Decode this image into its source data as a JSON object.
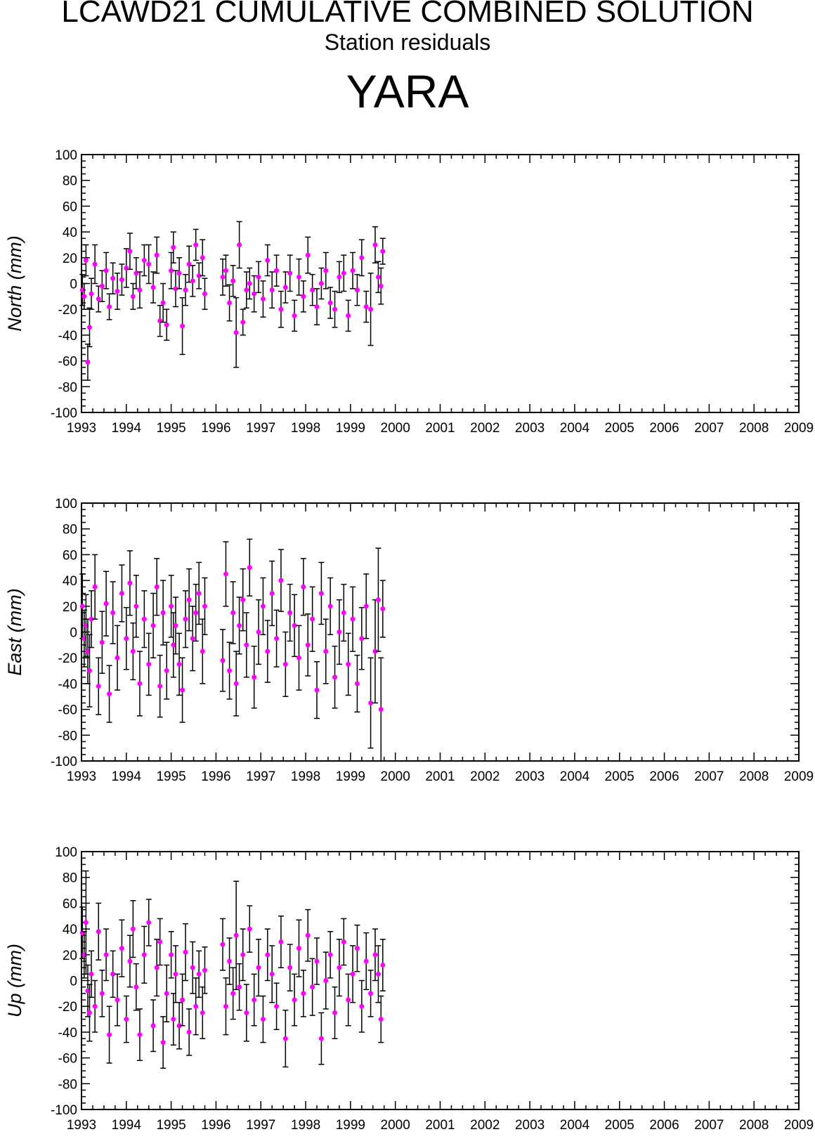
{
  "header": {
    "title": "LCAWD21 CUMULATIVE COMBINED SOLUTION",
    "subtitle": "Station residuals",
    "station": "YARA"
  },
  "colors": {
    "marker": "#ff00ff",
    "errorbar": "#000000",
    "axis": "#000000"
  },
  "chart_data": [
    {
      "type": "scatter",
      "ylabel": "North (mm)",
      "ylim": [
        -100,
        100
      ],
      "xlim": [
        1993,
        2009
      ],
      "yticks": [
        "100",
        "80",
        "60",
        "40",
        "20",
        "0",
        "-20",
        "-40",
        "-60",
        "-80",
        "-100"
      ],
      "xticks": [
        "1993",
        "1994",
        "1995",
        "1996",
        "1997",
        "1998",
        "1999",
        "2000",
        "2001",
        "2002",
        "2003",
        "2004",
        "2005",
        "2006",
        "2007",
        "2008",
        "2009"
      ],
      "series": [
        {
          "x": [
            1993.02,
            1993.06,
            1993.1,
            1993.14,
            1993.18,
            1993.22,
            1993.3,
            1993.38,
            1993.46,
            1993.55,
            1993.62,
            1993.7,
            1993.8,
            1993.9,
            1994.0,
            1994.08,
            1994.15,
            1994.22,
            1994.3,
            1994.4,
            1994.5,
            1994.6,
            1994.68,
            1994.75,
            1994.82,
            1994.9,
            1995.0,
            1995.05,
            1995.1,
            1995.18,
            1995.25,
            1995.32,
            1995.4,
            1995.48,
            1995.55,
            1995.62,
            1995.7,
            1995.75,
            1996.15,
            1996.22,
            1996.3,
            1996.38,
            1996.45,
            1996.52,
            1996.6,
            1996.68,
            1996.75,
            1996.85,
            1996.95,
            1997.05,
            1997.15,
            1997.25,
            1997.35,
            1997.45,
            1997.55,
            1997.65,
            1997.75,
            1997.85,
            1997.95,
            1998.05,
            1998.15,
            1998.25,
            1998.35,
            1998.45,
            1998.55,
            1998.65,
            1998.75,
            1998.85,
            1998.95,
            1999.05,
            1999.15,
            1999.25,
            1999.35,
            1999.45,
            1999.55,
            1999.62,
            1999.68,
            1999.72
          ],
          "y": [
            -5,
            -10,
            18,
            -61,
            -34,
            -8,
            15,
            -12,
            -2,
            10,
            -18,
            4,
            -6,
            3,
            12,
            25,
            -10,
            8,
            -5,
            18,
            15,
            -3,
            22,
            -29,
            -15,
            -32,
            10,
            28,
            -4,
            8,
            -33,
            -5,
            15,
            2,
            30,
            6,
            20,
            -8,
            5,
            10,
            -15,
            2,
            -38,
            30,
            -30,
            -5,
            0,
            -8,
            5,
            -12,
            18,
            -5,
            10,
            -20,
            -3,
            8,
            -25,
            5,
            -10,
            22,
            -5,
            -18,
            0,
            10,
            -15,
            -20,
            5,
            8,
            -25,
            10,
            -5,
            20,
            -18,
            -20,
            30,
            5,
            -2,
            25
          ],
          "err": [
            12,
            10,
            12,
            14,
            15,
            12,
            15,
            10,
            12,
            14,
            10,
            12,
            14,
            12,
            15,
            14,
            10,
            12,
            14,
            12,
            15,
            12,
            14,
            12,
            15,
            12,
            14,
            12,
            14,
            12,
            22,
            12,
            14,
            12,
            12,
            10,
            14,
            12,
            14,
            12,
            14,
            12,
            27,
            18,
            10,
            14,
            12,
            14,
            12,
            14,
            12,
            14,
            12,
            14,
            12,
            14,
            12,
            14,
            12,
            14,
            12,
            14,
            12,
            14,
            12,
            14,
            12,
            14,
            12,
            14,
            12,
            14,
            12,
            28,
            14,
            12,
            14,
            10
          ]
        }
      ]
    },
    {
      "type": "scatter",
      "ylabel": "East (mm)",
      "ylim": [
        -100,
        100
      ],
      "xlim": [
        1993,
        2009
      ],
      "yticks": [
        "100",
        "80",
        "60",
        "40",
        "20",
        "0",
        "-20",
        "-40",
        "-60",
        "-80",
        "-100"
      ],
      "xticks": [
        "1993",
        "1994",
        "1995",
        "1996",
        "1997",
        "1998",
        "1999",
        "2000",
        "2001",
        "2002",
        "2003",
        "2004",
        "2005",
        "2006",
        "2007",
        "2008",
        "2009"
      ],
      "series": [
        {
          "x": [
            1993.02,
            1993.06,
            1993.1,
            1993.14,
            1993.18,
            1993.22,
            1993.3,
            1993.38,
            1993.46,
            1993.55,
            1993.62,
            1993.7,
            1993.8,
            1993.9,
            1994.0,
            1994.08,
            1994.15,
            1994.22,
            1994.3,
            1994.4,
            1994.5,
            1994.6,
            1994.68,
            1994.75,
            1994.82,
            1994.9,
            1995.0,
            1995.05,
            1995.1,
            1995.18,
            1995.25,
            1995.32,
            1995.4,
            1995.48,
            1995.55,
            1995.62,
            1995.7,
            1995.75,
            1996.15,
            1996.22,
            1996.3,
            1996.38,
            1996.45,
            1996.52,
            1996.6,
            1996.68,
            1996.75,
            1996.85,
            1996.95,
            1997.05,
            1997.15,
            1997.25,
            1997.35,
            1997.45,
            1997.55,
            1997.65,
            1997.75,
            1997.85,
            1997.95,
            1998.05,
            1998.15,
            1998.25,
            1998.35,
            1998.45,
            1998.55,
            1998.65,
            1998.75,
            1998.85,
            1998.95,
            1999.05,
            1999.15,
            1999.25,
            1999.35,
            1999.45,
            1999.55,
            1999.62,
            1999.68,
            1999.72
          ],
          "y": [
            20,
            -5,
            5,
            -15,
            -30,
            10,
            35,
            -42,
            -8,
            22,
            -48,
            15,
            -20,
            30,
            -5,
            38,
            -15,
            20,
            -40,
            10,
            -25,
            5,
            35,
            -42,
            15,
            -30,
            20,
            -10,
            5,
            -25,
            -45,
            10,
            25,
            -5,
            15,
            30,
            -15,
            20,
            -22,
            45,
            -30,
            15,
            -40,
            5,
            25,
            -10,
            50,
            -35,
            0,
            20,
            -15,
            30,
            -5,
            40,
            -25,
            15,
            5,
            -20,
            35,
            -10,
            10,
            -45,
            30,
            -15,
            20,
            -35,
            0,
            15,
            -25,
            10,
            -40,
            -5,
            20,
            -55,
            -15,
            25,
            -60,
            18
          ],
          "err": [
            25,
            22,
            24,
            25,
            28,
            22,
            25,
            22,
            24,
            25,
            22,
            24,
            25,
            22,
            24,
            25,
            22,
            24,
            25,
            22,
            24,
            25,
            22,
            24,
            25,
            22,
            24,
            25,
            22,
            24,
            25,
            22,
            24,
            25,
            22,
            24,
            25,
            22,
            24,
            25,
            22,
            24,
            25,
            22,
            24,
            25,
            22,
            24,
            25,
            22,
            24,
            25,
            22,
            24,
            25,
            22,
            24,
            25,
            22,
            24,
            25,
            22,
            24,
            25,
            22,
            24,
            25,
            22,
            24,
            25,
            22,
            24,
            25,
            35,
            40,
            40,
            40,
            22
          ]
        }
      ]
    },
    {
      "type": "scatter",
      "ylabel": "Up (mm)",
      "ylim": [
        -100,
        100
      ],
      "xlim": [
        1993,
        2009
      ],
      "yticks": [
        "100",
        "80",
        "60",
        "40",
        "20",
        "0",
        "-20",
        "-40",
        "-60",
        "-80",
        "-100"
      ],
      "xticks": [
        "1993",
        "1994",
        "1995",
        "1996",
        "1997",
        "1998",
        "1999",
        "2000",
        "2001",
        "2002",
        "2003",
        "2004",
        "2005",
        "2006",
        "2007",
        "2008",
        "2009"
      ],
      "series": [
        {
          "x": [
            1993.02,
            1993.06,
            1993.1,
            1993.14,
            1993.18,
            1993.22,
            1993.3,
            1993.38,
            1993.46,
            1993.55,
            1993.62,
            1993.7,
            1993.8,
            1993.9,
            1994.0,
            1994.08,
            1994.15,
            1994.22,
            1994.3,
            1994.4,
            1994.5,
            1994.6,
            1994.68,
            1994.75,
            1994.82,
            1994.9,
            1995.0,
            1995.05,
            1995.1,
            1995.18,
            1995.25,
            1995.32,
            1995.4,
            1995.48,
            1995.55,
            1995.62,
            1995.7,
            1995.75,
            1996.15,
            1996.22,
            1996.3,
            1996.38,
            1996.45,
            1996.52,
            1996.6,
            1996.68,
            1996.75,
            1996.85,
            1996.95,
            1997.05,
            1997.15,
            1997.25,
            1997.35,
            1997.45,
            1997.55,
            1997.65,
            1997.75,
            1997.85,
            1997.95,
            1998.05,
            1998.15,
            1998.25,
            1998.35,
            1998.45,
            1998.55,
            1998.65,
            1998.75,
            1998.85,
            1998.95,
            1999.05,
            1999.15,
            1999.25,
            1999.35,
            1999.45,
            1999.55,
            1999.62,
            1999.68,
            1999.72
          ],
          "y": [
            37,
            20,
            45,
            -8,
            -25,
            5,
            -20,
            38,
            -10,
            20,
            -42,
            5,
            -15,
            25,
            -30,
            15,
            40,
            -5,
            -42,
            20,
            45,
            -35,
            10,
            30,
            -48,
            -10,
            20,
            -30,
            5,
            -35,
            -15,
            22,
            -40,
            10,
            -20,
            5,
            -25,
            8,
            28,
            -20,
            15,
            -10,
            35,
            -5,
            20,
            -25,
            40,
            -15,
            10,
            -30,
            20,
            5,
            -20,
            30,
            -45,
            10,
            -15,
            25,
            -10,
            35,
            -5,
            15,
            -45,
            0,
            20,
            -25,
            10,
            30,
            -15,
            5,
            25,
            -20,
            15,
            -10,
            20,
            5,
            -30,
            12
          ],
          "err": [
            20,
            18,
            40,
            20,
            22,
            18,
            20,
            22,
            18,
            20,
            22,
            18,
            20,
            22,
            18,
            20,
            22,
            18,
            20,
            22,
            18,
            20,
            22,
            18,
            20,
            22,
            18,
            20,
            22,
            18,
            20,
            22,
            18,
            20,
            22,
            18,
            20,
            18,
            20,
            22,
            18,
            20,
            42,
            18,
            20,
            22,
            18,
            20,
            22,
            18,
            20,
            22,
            18,
            20,
            22,
            18,
            20,
            22,
            18,
            20,
            22,
            18,
            20,
            22,
            18,
            20,
            22,
            18,
            20,
            22,
            18,
            20,
            22,
            18,
            20,
            22,
            18,
            20
          ]
        }
      ]
    }
  ]
}
